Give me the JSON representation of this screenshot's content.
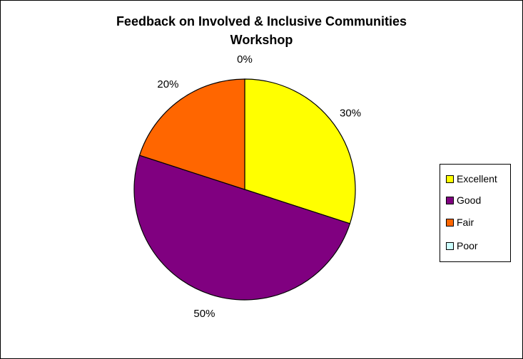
{
  "chart_data": {
    "type": "pie",
    "title_lines": [
      "Feedback on Involved & Inclusive Communities",
      "Workshop"
    ],
    "categories": [
      "Excellent",
      "Good",
      "Fair",
      "Poor"
    ],
    "values": [
      30,
      50,
      20,
      0
    ],
    "data_labels": [
      "30%",
      "50%",
      "20%",
      "0%"
    ],
    "colors": [
      "#FFFF00",
      "#800080",
      "#FF6600",
      "#CCFFFF"
    ],
    "legend_position": "right"
  }
}
